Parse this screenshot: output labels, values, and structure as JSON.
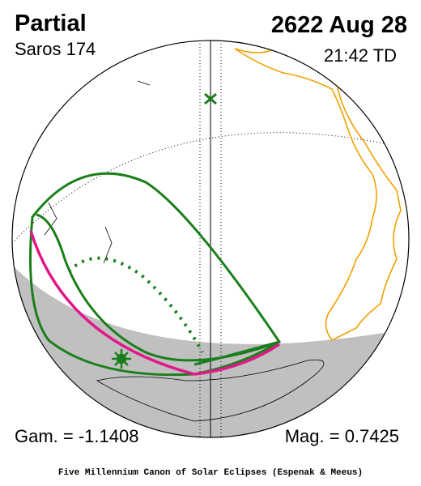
{
  "header": {
    "title": "Partial",
    "date": "2622 Aug 28",
    "saros": "Saros 174",
    "time": "21:42 TD"
  },
  "footer": {
    "gamma": "Gam. = -1.1408",
    "magnitude": "Mag. = 0.7425",
    "credit": "Five Millennium Canon of Solar Eclipses (Espenak & Meeus)"
  }
}
